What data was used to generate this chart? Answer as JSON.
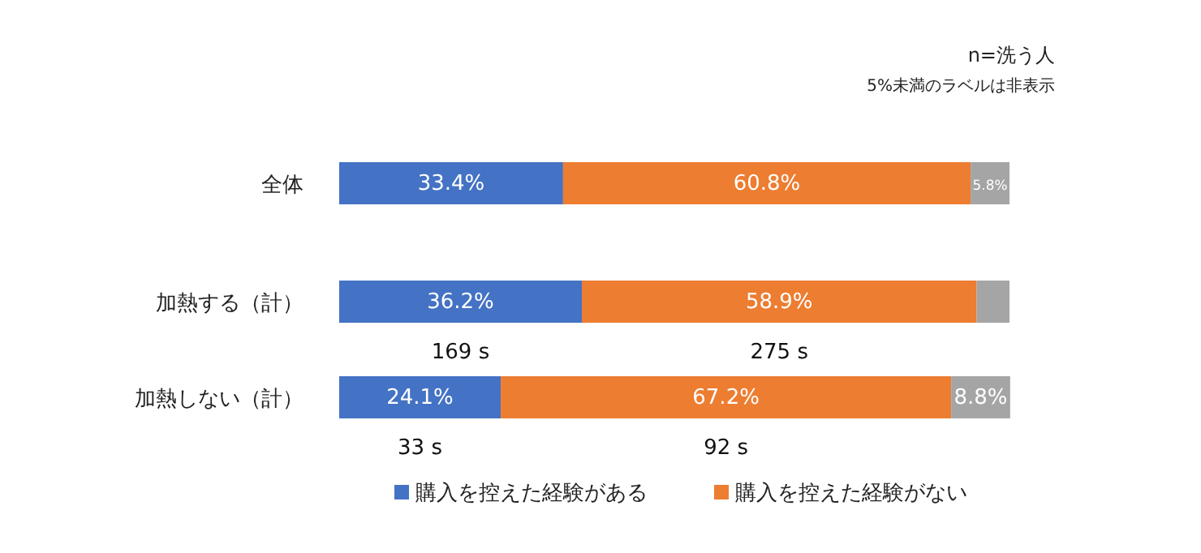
{
  "chart_data": {
    "type": "bar",
    "orientation": "horizontal",
    "stacked": true,
    "categories": [
      "全体",
      "加熱する（計）",
      "加熱しない（計）"
    ],
    "series": [
      {
        "name": "購入を控えた経験がある",
        "color": "#4472c4",
        "values": [
          33.4,
          36.2,
          24.1
        ],
        "value_labels": [
          "33.4%",
          "36.2%",
          "24.1%"
        ]
      },
      {
        "name": "購入を控えた経験がない",
        "color": "#ed7d31",
        "values": [
          60.8,
          58.9,
          67.2
        ],
        "value_labels": [
          "60.8%",
          "58.9%",
          "67.2%"
        ]
      },
      {
        "color": "#a5a5a5",
        "values": [
          5.8,
          4.9,
          8.8
        ],
        "value_labels": [
          "5.8%",
          null,
          "8.8%"
        ]
      }
    ],
    "xlim": [
      0,
      100
    ],
    "tick_labels": "y",
    "legend": "bottom",
    "annotations": [
      "n=洗う人",
      "5%未満のラベルは非表示",
      "169 s",
      "275 s",
      "33 s",
      "92 s"
    ]
  }
}
